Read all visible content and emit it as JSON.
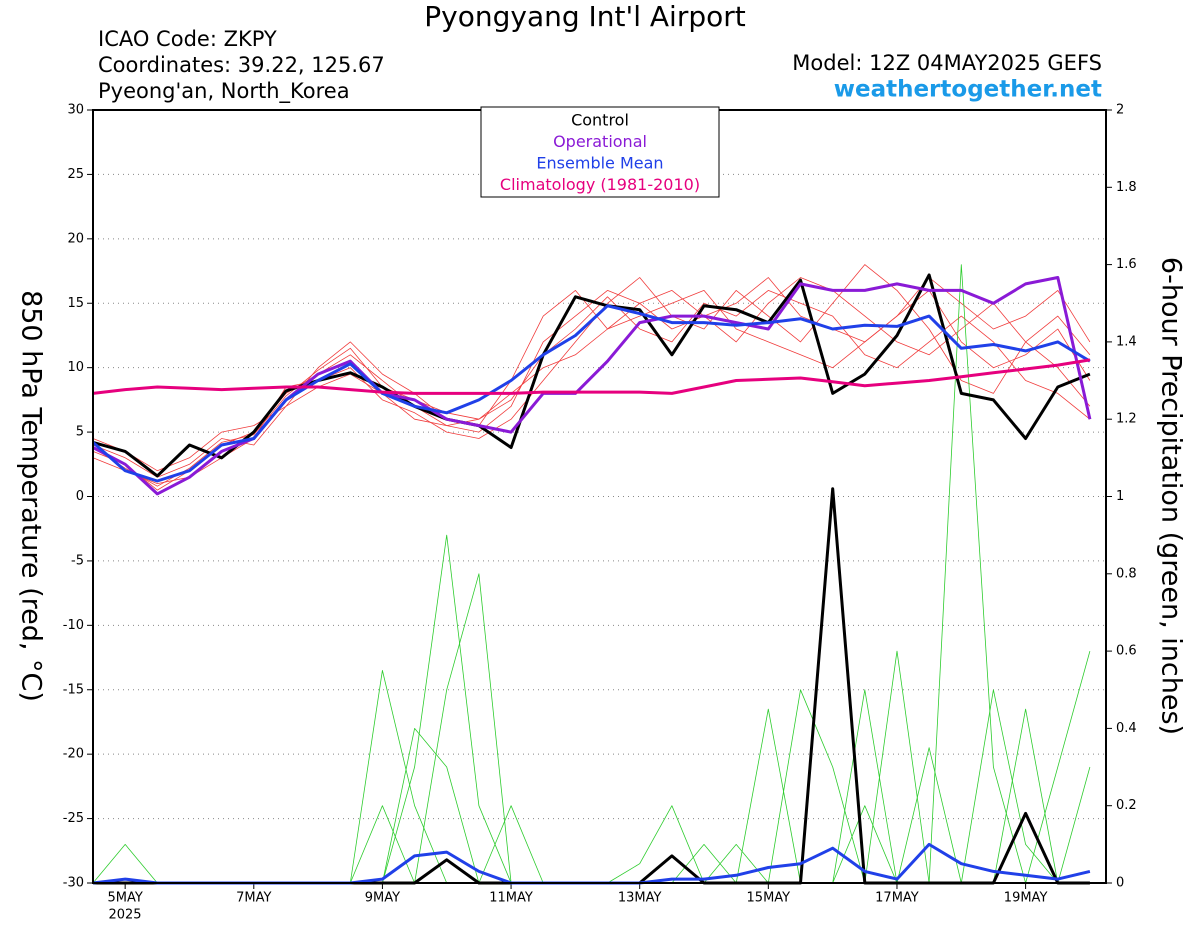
{
  "chart_data": {
    "type": "line",
    "title": "Pyongyang Int'l Airport",
    "info_left": [
      "ICAO Code: ZKPY",
      "Coordinates: 39.22, 125.67",
      "Pyeong'an, North_Korea"
    ],
    "model": "Model: 12Z 04MAY2025 GEFS",
    "website": "weathertogether.net",
    "ylabel": "850 hPa Temperature (red, °C)",
    "y2label": "6-hour Precipitation (green, inches)",
    "year_label": "2025",
    "x": [
      -0.5,
      0,
      0.5,
      1,
      1.5,
      2,
      2.5,
      3,
      3.5,
      4,
      4.5,
      5,
      5.5,
      6,
      6.5,
      7,
      7.5,
      8,
      8.5,
      9,
      9.5,
      10,
      10.5,
      11,
      11.5,
      12,
      12.5,
      13,
      13.5,
      14,
      14.5,
      15
    ],
    "xlim": [
      -0.5,
      15.25
    ],
    "xticks": [
      {
        "value": 0,
        "label": "5MAY"
      },
      {
        "value": 2,
        "label": "7MAY"
      },
      {
        "value": 4,
        "label": "9MAY"
      },
      {
        "value": 6,
        "label": "11MAY"
      },
      {
        "value": 8,
        "label": "13MAY"
      },
      {
        "value": 10,
        "label": "15MAY"
      },
      {
        "value": 12,
        "label": "17MAY"
      },
      {
        "value": 14,
        "label": "19MAY"
      }
    ],
    "ylim": [
      -30,
      30
    ],
    "yticks": [
      -30,
      -25,
      -20,
      -15,
      -10,
      -5,
      0,
      5,
      10,
      15,
      20,
      25,
      30
    ],
    "y2lim": [
      0,
      2
    ],
    "y2ticks": [
      0,
      0.2,
      0.4,
      0.6,
      0.8,
      1,
      1.2,
      1.4,
      1.6,
      1.8,
      2
    ],
    "grid": true,
    "series": [
      {
        "name": "Control",
        "color": "#000000",
        "values": [
          4.2,
          3.5,
          1.6,
          4.0,
          3.0,
          5.0,
          8.2,
          9.0,
          9.6,
          8.5,
          7.0,
          6.0,
          5.5,
          3.8,
          11.0,
          15.5,
          14.8,
          14.5,
          11.0,
          14.8,
          14.5,
          13.5,
          16.8,
          8.0,
          9.5,
          12.5,
          17.2,
          8.0,
          7.5,
          4.5,
          8.5,
          9.5
        ]
      },
      {
        "name": "Operational",
        "color": "#8a1ad6",
        "values": [
          3.8,
          2.5,
          0.2,
          1.5,
          3.5,
          4.5,
          7.5,
          9.5,
          10.5,
          8.0,
          7.5,
          6.0,
          5.5,
          5.0,
          8.0,
          8.0,
          10.5,
          13.5,
          14.0,
          14.0,
          13.5,
          13.0,
          16.5,
          16.0,
          16.0,
          16.5,
          16.0,
          16.0,
          15.0,
          16.5,
          17.0,
          6.0
        ]
      },
      {
        "name": "Ensemble Mean",
        "color": "#2040e8",
        "values": [
          4.2,
          2.0,
          1.2,
          2.0,
          4.0,
          4.5,
          7.5,
          9.0,
          10.3,
          8.0,
          7.0,
          6.5,
          7.5,
          9.0,
          11.0,
          12.5,
          14.8,
          14.2,
          13.5,
          13.5,
          13.3,
          13.5,
          13.8,
          13.0,
          13.3,
          13.2,
          14.0,
          11.5,
          11.8,
          11.3,
          12.0,
          10.5
        ]
      },
      {
        "name": "Climatology (1981-2010)",
        "color": "#e6007e",
        "values": [
          8.0,
          8.3,
          8.5,
          8.4,
          8.3,
          8.4,
          8.5,
          8.5,
          8.3,
          8.1,
          8.0,
          8.0,
          8.0,
          8.0,
          8.1,
          8.1,
          8.1,
          8.1,
          8.0,
          8.5,
          9.0,
          9.1,
          9.2,
          8.9,
          8.6,
          8.8,
          9.0,
          9.3,
          9.6,
          9.9,
          10.2,
          10.6
        ]
      },
      {
        "member": true,
        "color": "#f03c3c",
        "values": [
          3.5,
          2.5,
          0.5,
          2,
          4,
          5,
          8,
          9.5,
          11,
          9,
          7,
          5.5,
          5,
          7,
          12,
          14,
          16,
          15,
          13,
          14,
          15,
          17,
          14,
          13,
          12,
          14,
          16,
          12,
          10,
          11,
          13,
          9
        ]
      },
      {
        "member": true,
        "color": "#f03c3c",
        "values": [
          4,
          3,
          1.5,
          2.5,
          4.5,
          4,
          7,
          10,
          12,
          9.5,
          8,
          6,
          5.5,
          9,
          14,
          16,
          13,
          15,
          16,
          14,
          12,
          15,
          17,
          16,
          14,
          12,
          11,
          13,
          15,
          12,
          10,
          7
        ]
      },
      {
        "member": true,
        "color": "#f03c3c",
        "values": [
          3,
          2,
          1,
          1.5,
          3,
          4.5,
          8.5,
          9,
          10,
          7.5,
          6.5,
          5,
          4.5,
          6,
          9,
          12,
          15,
          17,
          14,
          13,
          16,
          14,
          12,
          15,
          18,
          16,
          13,
          9,
          8,
          12,
          14,
          11
        ]
      },
      {
        "member": true,
        "color": "#f03c3c",
        "values": [
          4.5,
          3.5,
          2,
          3,
          5,
          5.5,
          7,
          8.5,
          9.5,
          8,
          6,
          5.5,
          6,
          8,
          10,
          11,
          13,
          14,
          15,
          16,
          13,
          12,
          11,
          10,
          12,
          14,
          17,
          15,
          13,
          14,
          16,
          12
        ]
      },
      {
        "member": true,
        "color": "#f03c3c",
        "values": [
          3.8,
          2.2,
          0.8,
          2.2,
          4.2,
          4.8,
          7.8,
          9.8,
          11.5,
          8.5,
          7.5,
          6.5,
          6,
          7.5,
          11,
          13,
          15.5,
          13,
          12,
          15,
          14,
          16,
          15,
          14,
          11,
          10,
          12,
          14,
          12,
          9,
          8,
          6
        ]
      },
      {
        "axis": "y2",
        "color": "#000000",
        "values": [
          0,
          0,
          0,
          0,
          0,
          0,
          0,
          0,
          0,
          0,
          0,
          0.06,
          0,
          0,
          0,
          0,
          0,
          0,
          0.07,
          0,
          0,
          0,
          0,
          1.02,
          0,
          0,
          0,
          0,
          0,
          0.18,
          0,
          0
        ]
      },
      {
        "axis": "y2",
        "color": "#2040e8",
        "values": [
          0,
          0.01,
          0,
          0,
          0,
          0,
          0,
          0,
          0,
          0.01,
          0.07,
          0.08,
          0.03,
          0,
          0,
          0,
          0,
          0,
          0.01,
          0.01,
          0.02,
          0.04,
          0.05,
          0.09,
          0.03,
          0.01,
          0.1,
          0.05,
          0.03,
          0.02,
          0.01,
          0.03
        ]
      },
      {
        "axis": "y2",
        "member": true,
        "color": "#2ecc2e",
        "values": [
          0,
          0,
          0,
          0,
          0,
          0,
          0,
          0,
          0,
          0,
          0.3,
          0.9,
          0.2,
          0,
          0,
          0,
          0,
          0,
          0,
          0,
          0.1,
          0,
          0,
          0,
          0.5,
          0,
          0,
          1.6,
          0.3,
          0,
          0,
          0
        ]
      },
      {
        "axis": "y2",
        "member": true,
        "color": "#2ecc2e",
        "values": [
          0,
          0,
          0,
          0,
          0,
          0,
          0,
          0,
          0,
          0.2,
          0,
          0.5,
          0.8,
          0,
          0,
          0,
          0,
          0,
          0,
          0,
          0,
          0,
          0.5,
          0.3,
          0,
          0.6,
          0,
          0,
          0,
          0,
          0.3,
          0.6
        ]
      },
      {
        "axis": "y2",
        "member": true,
        "color": "#2ecc2e",
        "values": [
          0,
          0,
          0,
          0,
          0,
          0,
          0,
          0,
          0,
          0.55,
          0.2,
          0,
          0,
          0.2,
          0,
          0,
          0,
          0,
          0,
          0.1,
          0,
          0.45,
          0,
          0,
          0.2,
          0,
          0,
          0,
          0.5,
          0.1,
          0,
          0
        ]
      },
      {
        "axis": "y2",
        "member": true,
        "color": "#2ecc2e",
        "values": [
          0,
          0.1,
          0,
          0,
          0,
          0,
          0,
          0,
          0,
          0,
          0.4,
          0.3,
          0,
          0,
          0,
          0,
          0,
          0.05,
          0.2,
          0,
          0,
          0,
          0,
          0,
          0,
          0,
          0.35,
          0,
          0,
          0.45,
          0,
          0.3
        ]
      }
    ]
  }
}
